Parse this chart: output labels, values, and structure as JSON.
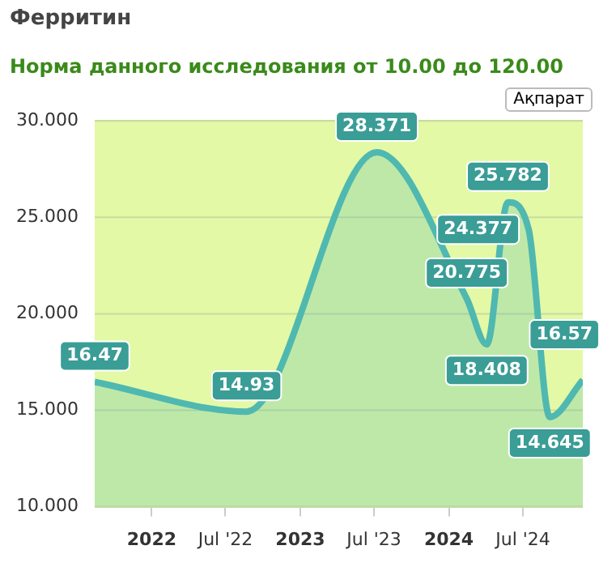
{
  "chart_data": {
    "type": "area",
    "title": "Ферритин",
    "subtitle": "Норма данного исследования от 10.00 до 120.00",
    "annotations": [
      "Ақпарат"
    ],
    "x": [
      "2021-08-14",
      "2022-08-22",
      "2023-07-08",
      "2024-02-14",
      "2024-04-03",
      "2024-05-25",
      "2024-07-15",
      "2024-09-05",
      "2024-11-25"
    ],
    "series": [
      {
        "color": "#4fb8b0",
        "values": [
          16.47,
          14.93,
          28.371,
          20.775,
          18.408,
          25.782,
          24.377,
          14.645,
          16.57
        ]
      }
    ],
    "xlim": [
      "2021-08-14",
      "2024-11-25"
    ],
    "xticks": [
      {
        "value": "2022-01-01",
        "label": "2022"
      },
      {
        "value": "2022-07-01",
        "label": "Jul '22"
      },
      {
        "value": "2023-01-01",
        "label": "2023"
      },
      {
        "value": "2023-07-01",
        "label": "Jul '23"
      },
      {
        "value": "2024-01-01",
        "label": "2024"
      },
      {
        "value": "2024-07-01",
        "label": "Jul '24"
      }
    ],
    "ylim": [
      10,
      30
    ],
    "yticks": [
      {
        "value": 10,
        "label": "10.000"
      },
      {
        "value": 15,
        "label": "15.000"
      },
      {
        "value": 20,
        "label": "20.000"
      },
      {
        "value": 25,
        "label": "25.000"
      },
      {
        "value": 30,
        "label": "30.000"
      }
    ],
    "bands": [
      {
        "axis": "y",
        "from": 10,
        "to": 30,
        "color": "#e3f9a6"
      }
    ],
    "grid": "y",
    "legend": false,
    "data_labels": true,
    "marker": "none"
  }
}
